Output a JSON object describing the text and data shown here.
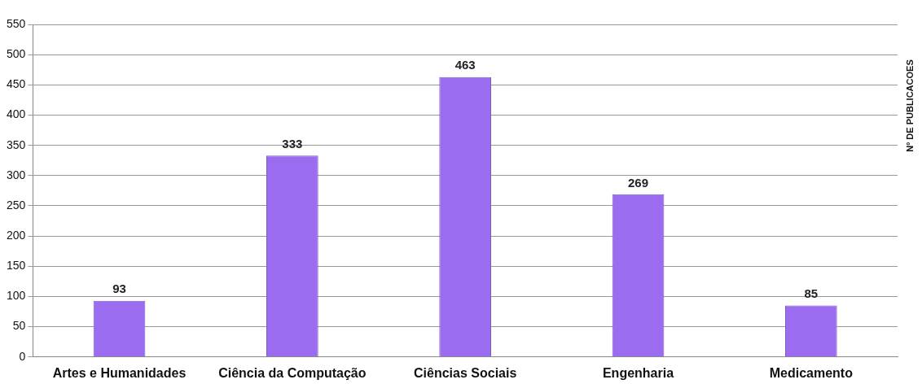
{
  "chart_data": {
    "type": "bar",
    "ylabel": "Nº DE PUBLICACOES",
    "categories": [
      "Artes e Humanidades",
      "Ciência da Computação",
      "Ciências Sociais",
      "Engenharia",
      "Medicamento"
    ],
    "values": [
      93,
      333,
      463,
      269,
      85
    ],
    "color": "#9b6cf0",
    "ylim": [
      0,
      550
    ],
    "yticks": [
      0,
      50,
      100,
      150,
      200,
      250,
      300,
      350,
      400,
      450,
      500,
      550
    ],
    "grid": "y",
    "data_labels": true
  }
}
